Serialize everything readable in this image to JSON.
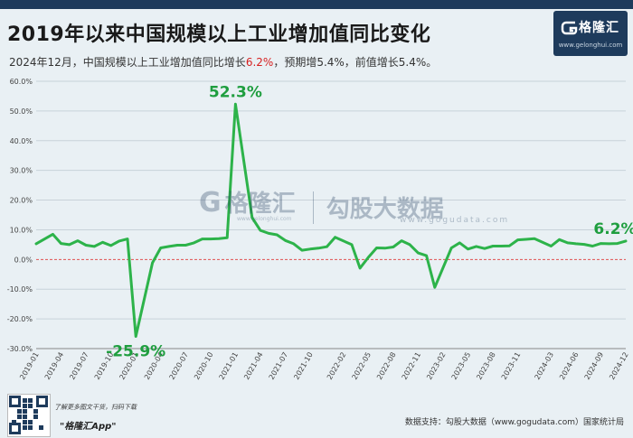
{
  "header": {
    "title": "2019年以来中国规模以上工业增加值同比变化",
    "subtitle_pre": "2024年12月，中国规模以上工业增加值同比增长",
    "subtitle_highlight": "6.2%",
    "subtitle_post": "，预期增5.4%，前值增长5.4%。"
  },
  "brand": {
    "name": "格隆汇",
    "url": "www.gelonghui.com",
    "logo_icon": "g-logo-icon"
  },
  "watermark": {
    "name": "格隆汇",
    "url": "www.gelonghui.com",
    "brand2": "勾股大数据",
    "url2": "www.gogudata.com"
  },
  "footer": {
    "qr_icon": "qr-code-icon",
    "tip": "了解更多图文干货，扫码下载",
    "app": "\"格隆汇App\"",
    "source": "数据支持：勾股大数据（www.gogudata.com）国家统计局"
  },
  "colors": {
    "line": "#2db34a",
    "zero_line": "#e05050",
    "annotation": "#1f9e3f",
    "brand": "#1e3b5c",
    "highlight": "#d61f1f"
  },
  "chart_data": {
    "type": "line",
    "ylim": [
      -30,
      60
    ],
    "yticks": [
      "-30.0%",
      "-20.0%",
      "-10.0%",
      "0.0%",
      "10.0%",
      "20.0%",
      "30.0%",
      "40.0%",
      "50.0%",
      "60.0%"
    ],
    "grid": true,
    "x_tick_labels": [
      "2019-01",
      "2019-04",
      "2019-07",
      "2019-10",
      "2020-01",
      "2020-04",
      "2020-07",
      "2020-10",
      "2021-01",
      "2021-04",
      "2021-07",
      "2021-10",
      "2022-02",
      "2022-05",
      "2022-08",
      "2022-11",
      "2023-02",
      "2023-05",
      "2023-08",
      "2023-11",
      "2024-03",
      "2024-06",
      "2024-09",
      "2024-12"
    ],
    "x": [
      "2019-01",
      "2019-03",
      "2019-04",
      "2019-05",
      "2019-06",
      "2019-07",
      "2019-08",
      "2019-09",
      "2019-10",
      "2019-11",
      "2019-12",
      "2020-01",
      "2020-03",
      "2020-04",
      "2020-05",
      "2020-06",
      "2020-07",
      "2020-08",
      "2020-09",
      "2020-10",
      "2020-11",
      "2020-12",
      "2021-01",
      "2021-03",
      "2021-04",
      "2021-05",
      "2021-06",
      "2021-07",
      "2021-08",
      "2021-09",
      "2021-10",
      "2021-11",
      "2021-12",
      "2022-01",
      "2022-03",
      "2022-04",
      "2022-05",
      "2022-06",
      "2022-07",
      "2022-08",
      "2022-09",
      "2022-10",
      "2022-11",
      "2022-12",
      "2023-01",
      "2023-03",
      "2023-04",
      "2023-05",
      "2023-06",
      "2023-07",
      "2023-08",
      "2023-09",
      "2023-10",
      "2023-11",
      "2023-12",
      "2024-01",
      "2024-03",
      "2024-04",
      "2024-05",
      "2024-06",
      "2024-07",
      "2024-08",
      "2024-09",
      "2024-10",
      "2024-11",
      "2024-12"
    ],
    "series": [
      {
        "values": [
          5.3,
          8.5,
          5.4,
          5.0,
          6.3,
          4.8,
          4.4,
          5.8,
          4.7,
          6.2,
          6.9,
          -25.9,
          -1.1,
          3.9,
          4.4,
          4.8,
          4.8,
          5.6,
          6.9,
          6.9,
          7.0,
          7.3,
          52.3,
          14.1,
          9.8,
          8.8,
          8.3,
          6.4,
          5.3,
          3.1,
          3.5,
          3.8,
          4.3,
          7.5,
          5.0,
          -2.9,
          0.7,
          3.9,
          3.8,
          4.2,
          6.3,
          5.0,
          2.2,
          1.3,
          -9.4,
          3.9,
          5.6,
          3.5,
          4.4,
          3.7,
          4.5,
          4.5,
          4.6,
          6.6,
          6.8,
          7.0,
          4.5,
          6.7,
          5.6,
          5.3,
          5.1,
          4.5,
          5.4,
          5.3,
          5.4,
          6.2
        ]
      }
    ],
    "annotations": [
      {
        "x": "2021-01",
        "value": 52.3,
        "text": "52.3%"
      },
      {
        "x": "2020-01",
        "value": -25.9,
        "text": "-25.9%"
      },
      {
        "x": "2024-12",
        "value": 6.2,
        "text": "6.2%"
      }
    ]
  }
}
